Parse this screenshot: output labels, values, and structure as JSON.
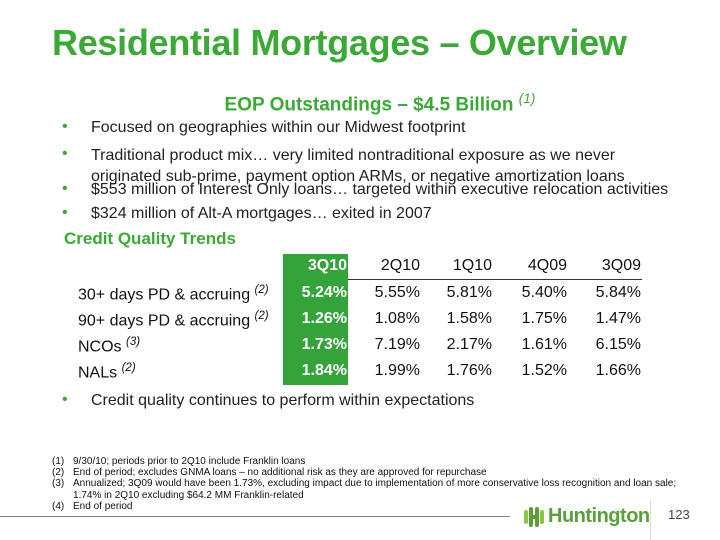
{
  "title": "Residential Mortgages – Overview",
  "subtitle": {
    "text": "EOP Outstandings – $4.5 Billion",
    "note": "(1)"
  },
  "bullets": [
    "Focused on geographies within our Midwest footprint",
    "Traditional product mix… very limited nontraditional exposure as we never originated sub-prime, payment option ARMs, or negative amortization loans",
    "$553 million of Interest Only loans… targeted within executive relocation activities",
    "$324 million of Alt-A mortgages… exited in 2007"
  ],
  "credit_quality": {
    "heading": "Credit Quality Trends",
    "columns": [
      "3Q10",
      "2Q10",
      "1Q10",
      "4Q09",
      "3Q09"
    ],
    "rows": [
      {
        "label": "30+ days PD & accruing",
        "note": "(2)",
        "values": [
          "5.24%",
          "5.55%",
          "5.81%",
          "5.40%",
          "5.84%"
        ]
      },
      {
        "label": "90+ days PD & accruing",
        "note": "(2)",
        "values": [
          "1.26%",
          "1.08%",
          "1.58%",
          "1.75%",
          "1.47%"
        ]
      },
      {
        "label": "NCOs",
        "note": "(3)",
        "values": [
          "1.73%",
          "7.19%",
          "2.17%",
          "1.61%",
          "6.15%"
        ]
      },
      {
        "label": "NALs",
        "note": "(2)",
        "values": [
          "1.84%",
          "1.99%",
          "1.76%",
          "1.52%",
          "1.66%"
        ]
      }
    ]
  },
  "closing_bullet": "Credit quality continues to perform within expectations",
  "footnotes": [
    {
      "n": "(1)",
      "text": "9/30/10; periods prior to 2Q10 include Franklin loans"
    },
    {
      "n": "(2)",
      "text": "End of period; excludes GNMA loans – no additional risk as they are approved for repurchase"
    },
    {
      "n": "(3)",
      "text": "Annualized; 3Q09 would have been 1.73%, excluding impact due to implementation of more conservative loss recognition and loan sale;"
    },
    {
      "n": "",
      "text": "1.74% in 2Q10 excluding $64.2 MM Franklin-related"
    },
    {
      "n": "(4)",
      "text": "End of period"
    }
  ],
  "logo": "Huntington",
  "page_number": "123",
  "colors": {
    "brand_green": "#3aa935",
    "highlight_column": "#33a33a"
  }
}
